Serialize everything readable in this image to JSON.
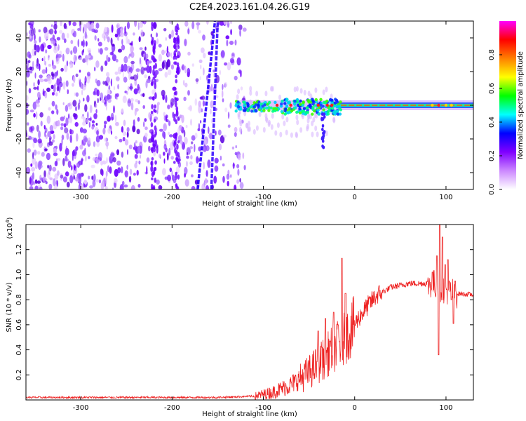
{
  "chart_data": [
    {
      "type": "heatmap",
      "title": "C2E4.2023.161.04.26.G19",
      "xlabel": "Height of straight line (km)",
      "ylabel": "Frequency (Hz)",
      "xlim": [
        -360,
        130
      ],
      "ylim": [
        -50,
        50
      ],
      "x_ticks": [
        -300,
        -200,
        -100,
        0,
        100
      ],
      "y_ticks": [
        -40,
        -20,
        0,
        20,
        40
      ],
      "grid": false,
      "noise_region_x": [
        -360,
        -120
      ],
      "tone_x": [
        -130,
        130
      ],
      "tone_freq_hz": 0,
      "streak_1": [
        {
          "x": -172,
          "y": -50
        },
        {
          "x": -153,
          "y": 50
        }
      ],
      "streak_2": [
        {
          "x": -157,
          "y": -50
        },
        {
          "x": -150,
          "y": 50
        }
      ],
      "colorbar": {
        "label": "Normalized spectral amplitude",
        "range": [
          0,
          1
        ],
        "ticks": [
          0.0,
          0.2,
          0.4,
          0.6,
          0.8
        ],
        "colors": [
          "#ffffff",
          "#cc88ff",
          "#8000ff",
          "#0000ff",
          "#00ffff",
          "#00ff00",
          "#ffff00",
          "#ff8000",
          "#ff0000",
          "#ff00ff"
        ]
      }
    },
    {
      "type": "line",
      "xlabel": "Height of straight line (km)",
      "ylabel": "SNR (10 * v/v)",
      "multiplier_label": "(x10",
      "multiplier_exp": "4",
      "xlim": [
        -360,
        130
      ],
      "ylim": [
        0,
        1.4
      ],
      "x_ticks": [
        -300,
        -200,
        -100,
        0,
        100
      ],
      "y_ticks": [
        0.2,
        0.4,
        0.6,
        0.8,
        1.0,
        1.2
      ],
      "color": "#ee2222",
      "grid": false,
      "envelope": [
        {
          "x": -360,
          "y": 0.02
        },
        {
          "x": -150,
          "y": 0.02
        },
        {
          "x": -110,
          "y": 0.03
        },
        {
          "x": -90,
          "y": 0.06
        },
        {
          "x": -70,
          "y": 0.12
        },
        {
          "x": -50,
          "y": 0.22
        },
        {
          "x": -35,
          "y": 0.32
        },
        {
          "x": -25,
          "y": 0.4
        },
        {
          "x": -15,
          "y": 0.45
        },
        {
          "x": -5,
          "y": 0.55
        },
        {
          "x": 5,
          "y": 0.66
        },
        {
          "x": 15,
          "y": 0.76
        },
        {
          "x": 25,
          "y": 0.84
        },
        {
          "x": 40,
          "y": 0.9
        },
        {
          "x": 60,
          "y": 0.93
        },
        {
          "x": 85,
          "y": 0.93
        },
        {
          "x": 100,
          "y": 0.88
        },
        {
          "x": 110,
          "y": 0.85
        },
        {
          "x": 130,
          "y": 0.84
        }
      ],
      "spikes": [
        {
          "x": -48,
          "y": 0.25
        },
        {
          "x": -40,
          "y": 0.55
        },
        {
          "x": -36,
          "y": 0.42
        },
        {
          "x": -32,
          "y": 0.65
        },
        {
          "x": -27,
          "y": 0.47
        },
        {
          "x": -23,
          "y": 0.7
        },
        {
          "x": -18,
          "y": 0.6
        },
        {
          "x": -14,
          "y": 1.13
        },
        {
          "x": -10,
          "y": 0.85
        },
        {
          "x": 85,
          "y": 1.02
        },
        {
          "x": 90,
          "y": 1.15
        },
        {
          "x": 93,
          "y": 1.4
        },
        {
          "x": 96,
          "y": 1.3
        },
        {
          "x": 99,
          "y": 1.08
        },
        {
          "x": 102,
          "y": 1.12
        },
        {
          "x": 106,
          "y": 0.8
        },
        {
          "x": 110,
          "y": 0.95
        }
      ],
      "dips": [
        {
          "x": 92,
          "y": 0.36
        },
        {
          "x": 108,
          "y": 0.61
        }
      ]
    }
  ]
}
